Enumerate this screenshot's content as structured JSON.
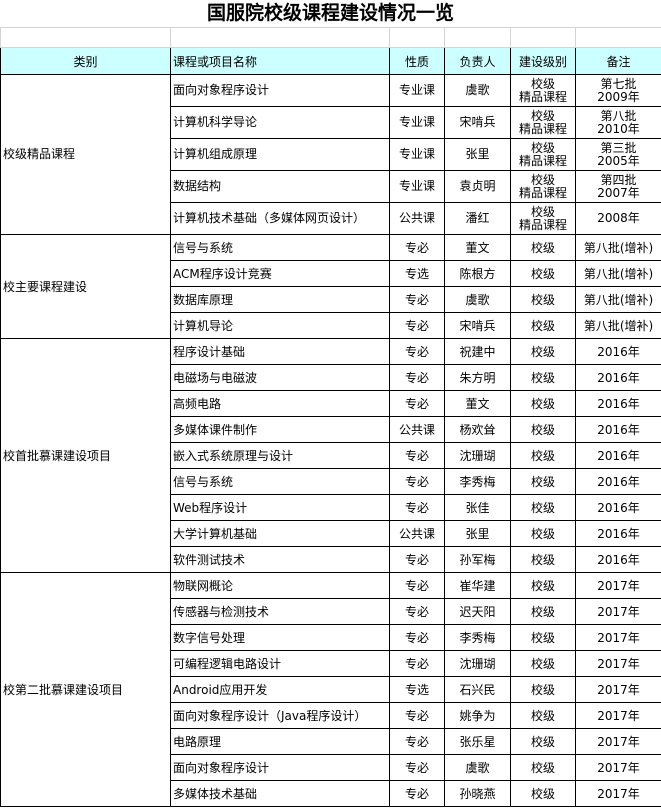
{
  "title": "国服院校级课程建设情况一览",
  "columns": [
    "类别",
    "课程或项目名称",
    "性质",
    "负责人",
    "建设级别",
    "备注"
  ],
  "header_bg": "#ccffff",
  "groups": [
    {
      "category": "校级精品课程",
      "rows": [
        {
          "name": "面向对象程序设计",
          "type": "专业课",
          "owner": "虞歌",
          "level": [
            "校级",
            "精品课程"
          ],
          "note": [
            "第七批",
            "2009年"
          ]
        },
        {
          "name": "计算机科学导论",
          "type": "专业课",
          "owner": "宋啃兵",
          "level": [
            "校级",
            "精品课程"
          ],
          "note": [
            "第八批",
            "2010年"
          ]
        },
        {
          "name": "计算机组成原理",
          "type": "专业课",
          "owner": "张里",
          "level": [
            "校级",
            "精品课程"
          ],
          "note": [
            "第三批",
            "2005年"
          ]
        },
        {
          "name": "数据结构",
          "type": "专业课",
          "owner": "袁贞明",
          "level": [
            "校级",
            "精品课程"
          ],
          "note": [
            "第四批",
            "2007年"
          ]
        },
        {
          "name": "计算机技术基础（多媒体网页设计）",
          "type": "公共课",
          "owner": "潘红",
          "level": [
            "校级",
            "精品课程"
          ],
          "note": [
            "2008年"
          ]
        }
      ]
    },
    {
      "category": "校主要课程建设",
      "rows": [
        {
          "name": "信号与系统",
          "type": "专必",
          "owner": "董文",
          "level": [
            "校级"
          ],
          "note": [
            "第八批(增补)"
          ]
        },
        {
          "name": "ACM程序设计竞赛",
          "type": "专选",
          "owner": "陈根方",
          "level": [
            "校级"
          ],
          "note": [
            "第八批(增补)"
          ]
        },
        {
          "name": "数据库原理",
          "type": "专必",
          "owner": "虞歌",
          "level": [
            "校级"
          ],
          "note": [
            "第八批(增补)"
          ]
        },
        {
          "name": "计算机导论",
          "type": "专必",
          "owner": "宋啃兵",
          "level": [
            "校级"
          ],
          "note": [
            "第八批(增补)"
          ]
        }
      ]
    },
    {
      "category": "校首批慕课建设项目",
      "rows": [
        {
          "name": "程序设计基础",
          "type": "专必",
          "owner": "祝建中",
          "level": [
            "校级"
          ],
          "note": [
            "2016年"
          ]
        },
        {
          "name": "电磁场与电磁波",
          "type": "专必",
          "owner": "朱方明",
          "level": [
            "校级"
          ],
          "note": [
            "2016年"
          ]
        },
        {
          "name": "高频电路",
          "type": "专必",
          "owner": "董文",
          "level": [
            "校级"
          ],
          "note": [
            "2016年"
          ]
        },
        {
          "name": "多媒体课件制作",
          "type": "公共课",
          "owner": "杨欢耸",
          "level": [
            "校级"
          ],
          "note": [
            "2016年"
          ]
        },
        {
          "name": "嵌入式系统原理与设计",
          "type": "专必",
          "owner": "沈珊瑚",
          "level": [
            "校级"
          ],
          "note": [
            "2016年"
          ]
        },
        {
          "name": "信号与系统",
          "type": "专必",
          "owner": "李秀梅",
          "level": [
            "校级"
          ],
          "note": [
            "2016年"
          ]
        },
        {
          "name": "Web程序设计",
          "type": "专必",
          "owner": "张佳",
          "level": [
            "校级"
          ],
          "note": [
            "2016年"
          ]
        },
        {
          "name": "大学计算机基础",
          "type": "公共课",
          "owner": "张里",
          "level": [
            "校级"
          ],
          "note": [
            "2016年"
          ]
        },
        {
          "name": "软件测试技术",
          "type": "专必",
          "owner": "孙军梅",
          "level": [
            "校级"
          ],
          "note": [
            "2016年"
          ]
        }
      ]
    },
    {
      "category": "校第二批慕课建设项目",
      "rows": [
        {
          "name": "物联网概论",
          "type": "专必",
          "owner": "崔华建",
          "level": [
            "校级"
          ],
          "note": [
            "2017年"
          ]
        },
        {
          "name": "传感器与检测技术",
          "type": "专必",
          "owner": "迟天阳",
          "level": [
            "校级"
          ],
          "note": [
            "2017年"
          ]
        },
        {
          "name": "数字信号处理",
          "type": "专必",
          "owner": "李秀梅",
          "level": [
            "校级"
          ],
          "note": [
            "2017年"
          ]
        },
        {
          "name": "可编程逻辑电路设计",
          "type": "专必",
          "owner": "沈珊瑚",
          "level": [
            "校级"
          ],
          "note": [
            "2017年"
          ]
        },
        {
          "name": "Android应用开发",
          "type": "专选",
          "owner": "石兴民",
          "level": [
            "校级"
          ],
          "note": [
            "2017年"
          ]
        },
        {
          "name": "面向对象程序设计（Java程序设计）",
          "type": "专必",
          "owner": "姚争为",
          "level": [
            "校级"
          ],
          "note": [
            "2017年"
          ]
        },
        {
          "name": "电路原理",
          "type": "专必",
          "owner": "张乐星",
          "level": [
            "校级"
          ],
          "note": [
            "2017年"
          ]
        },
        {
          "name": "面向对象程序设计",
          "type": "专必",
          "owner": "虞歌",
          "level": [
            "校级"
          ],
          "note": [
            "2017年"
          ]
        },
        {
          "name": "多媒体技术基础",
          "type": "专必",
          "owner": "孙晓燕",
          "level": [
            "校级"
          ],
          "note": [
            "2017年"
          ]
        }
      ]
    }
  ]
}
